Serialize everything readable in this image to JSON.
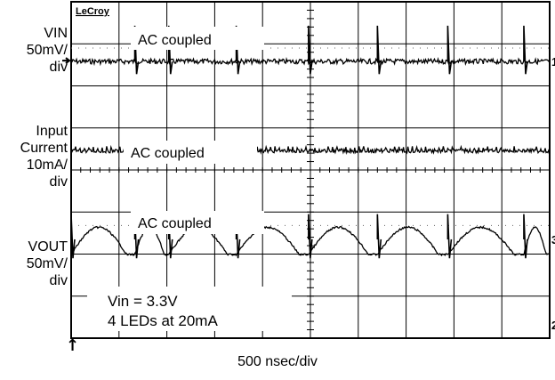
{
  "chart_data": {
    "type": "line",
    "brand": "LeCroy",
    "xlabel": "500 nsec/div",
    "grid": true,
    "divisions": {
      "x": 10,
      "y": 8
    },
    "x_range_div": [
      0,
      10
    ],
    "channels": [
      {
        "id": "1",
        "label_lines": [
          "VIN",
          "50mV/",
          "div"
        ],
        "annotation": "AC coupled",
        "marker": "1",
        "baseline_div": 1.42,
        "spike_positions_div": [
          1.33,
          2.04,
          3.45,
          4.96,
          6.4,
          7.87,
          9.46
        ],
        "ripple_pp_div": 0.2
      },
      {
        "id": "2",
        "label_lines": [
          "Input",
          "Current",
          "10mA/",
          "div"
        ],
        "annotation": "AC coupled",
        "marker": "",
        "baseline_div": 3.55,
        "ripple_pp_div": 0.06
      },
      {
        "id": "3",
        "label_lines": [
          "VOUT",
          "50mV/",
          "div"
        ],
        "annotation": "AC coupled",
        "marker": "3",
        "baseline_div": 5.65,
        "spike_positions_div": [
          0.0,
          1.33,
          2.04,
          3.45,
          4.96,
          6.4,
          7.87,
          9.46
        ],
        "ripple_pp_div": 0.45
      }
    ],
    "ground_marker": "2",
    "notes": [
      "Vin = 3.3V",
      "4 LEDs at 20mA"
    ],
    "trigger_marker": "↑",
    "series_color": "#000000"
  }
}
